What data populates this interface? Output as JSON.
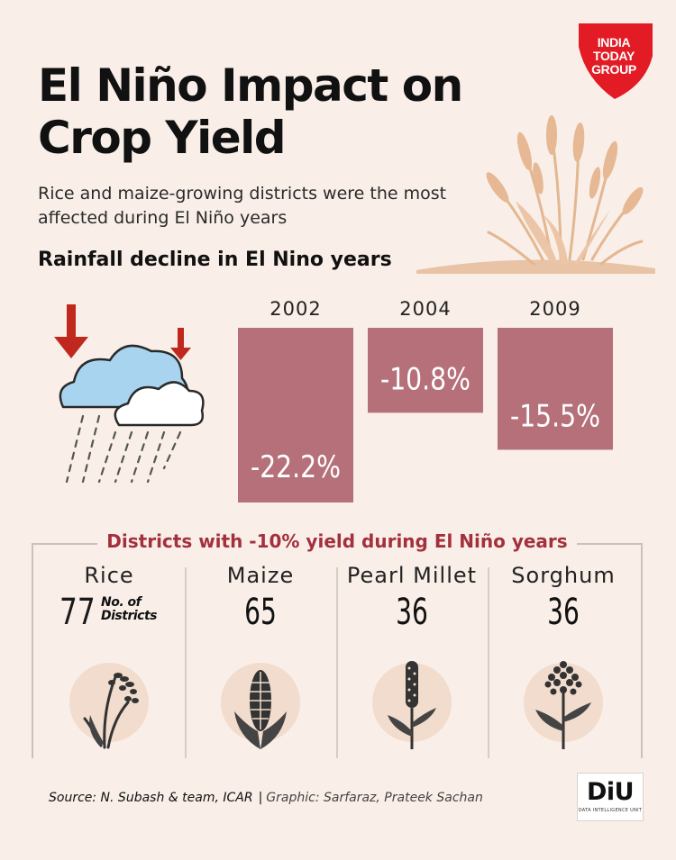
{
  "header": {
    "title": "El Niño Impact on Crop Yield",
    "subtitle": "Rice and maize-growing districts were the most affected during El Niño years",
    "section_title": "Rainfall decline in El Nino years"
  },
  "logo": {
    "line1": "INDIA",
    "line2": "TODAY",
    "line3": "GROUP",
    "color": "#e21b25"
  },
  "colors": {
    "background": "#f9efe8",
    "bar": "#b5707a",
    "accent_red": "#a3303d",
    "arrow": "#c0281e",
    "cloud_blue": "#a9d4ef"
  },
  "chart_data": {
    "type": "bar",
    "categories": [
      "2002",
      "2004",
      "2009"
    ],
    "values": [
      -22.2,
      -10.8,
      -15.5
    ],
    "data_labels": [
      "-22.2%",
      "-10.8%",
      "-15.5%"
    ],
    "title": "Rainfall decline in El Nino years",
    "ylabel": "",
    "ylim": [
      -22.2,
      0
    ],
    "grid": false,
    "legend": "none"
  },
  "districts": {
    "title": "Districts with -10% yield during El Niño years",
    "unit_label": "No. of Districts",
    "crops": [
      {
        "name": "Rice",
        "value": "77",
        "icon": "rice-icon"
      },
      {
        "name": "Maize",
        "value": "65",
        "icon": "maize-icon"
      },
      {
        "name": "Pearl Millet",
        "value": "36",
        "icon": "pearl-millet-icon"
      },
      {
        "name": "Sorghum",
        "value": "36",
        "icon": "sorghum-icon"
      }
    ]
  },
  "footer": {
    "source": "Source: N. Subash & team, ICAR",
    "separator": "|",
    "credit": "Graphic: Sarfaraz, Prateek Sachan",
    "badge": "DiU",
    "badge_sub": "DATA INTELLIGENCE UNIT"
  }
}
